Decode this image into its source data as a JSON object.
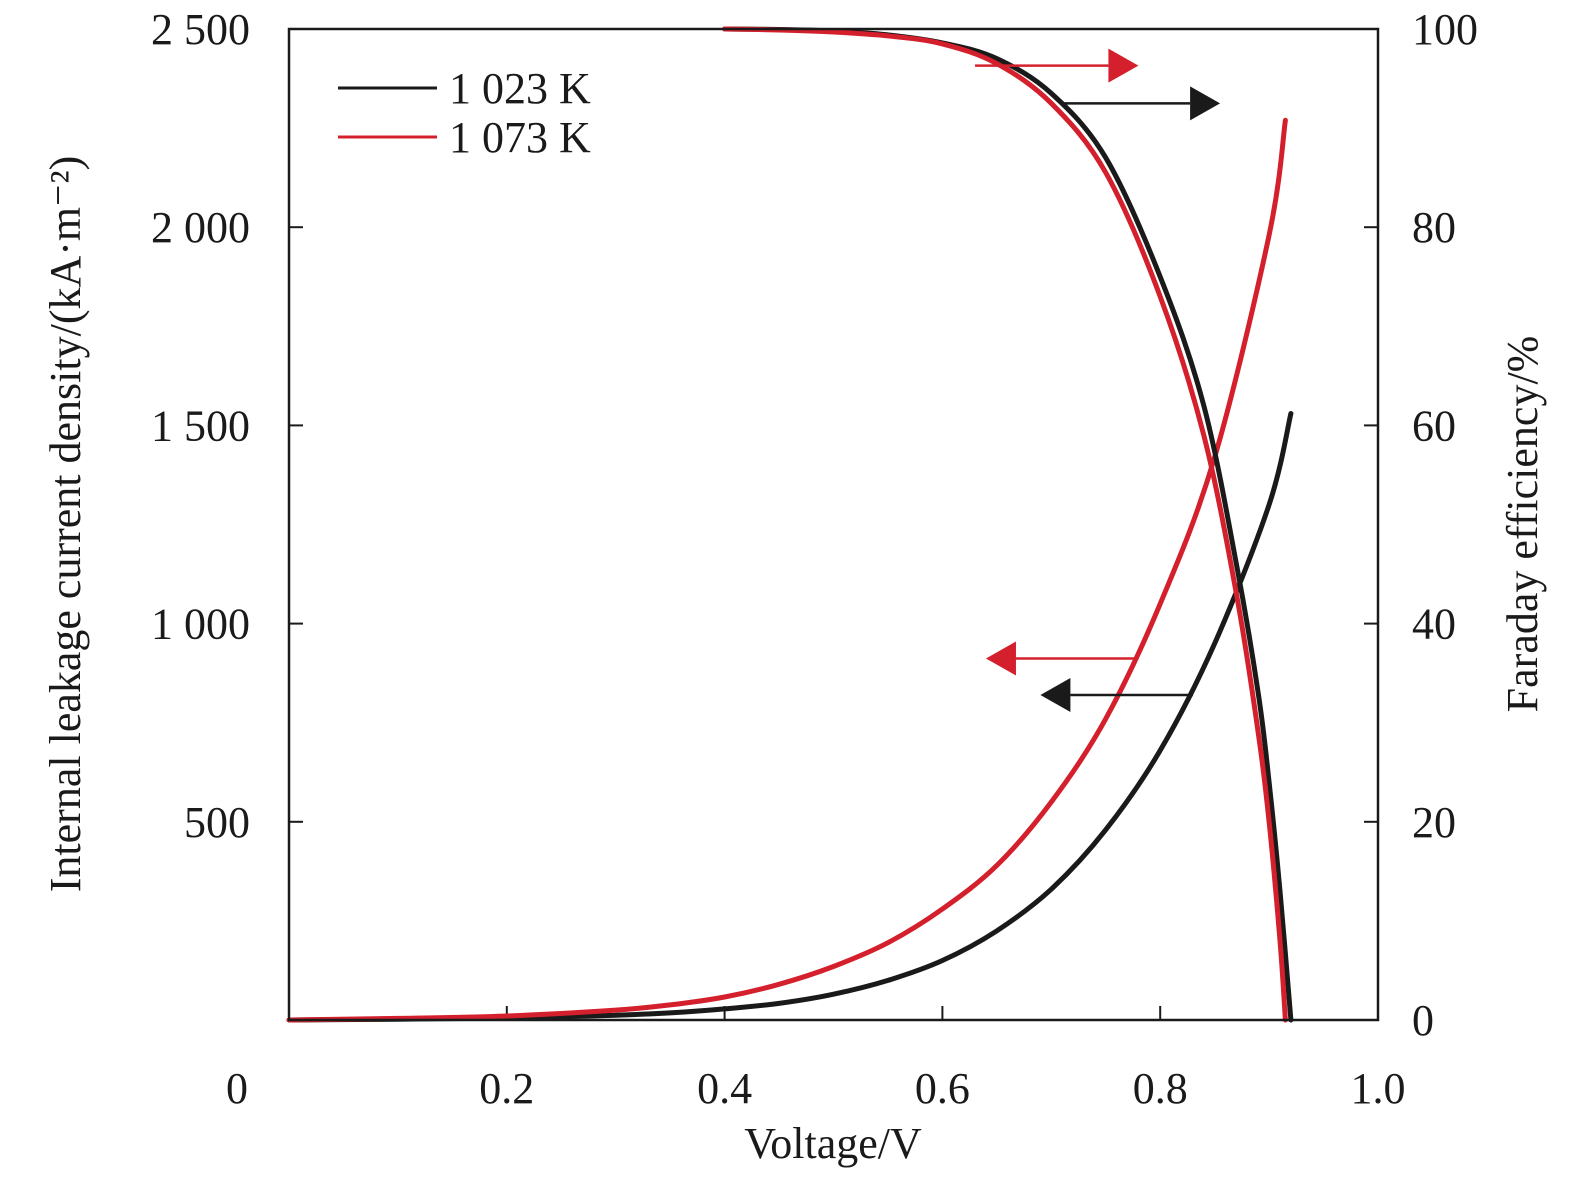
{
  "chart_data": {
    "type": "line",
    "xlabel": "Voltage/V",
    "ylabel_left": "Internal leakage current density/(kA·m⁻²)",
    "ylabel_right": "Faraday efficiency/%",
    "xlim": [
      0,
      1.0
    ],
    "ylim_left": [
      0,
      2500
    ],
    "ylim_right": [
      0,
      100
    ],
    "x_ticks": [
      {
        "value": 0,
        "label": "0"
      },
      {
        "value": 0.2,
        "label": "0.2"
      },
      {
        "value": 0.4,
        "label": "0.4"
      },
      {
        "value": 0.6,
        "label": "0.6"
      },
      {
        "value": 0.8,
        "label": "0.8"
      },
      {
        "value": 1.0,
        "label": "1.0"
      }
    ],
    "y_left_ticks": [
      {
        "value": 500,
        "label": "500"
      },
      {
        "value": 1000,
        "label": "1 000"
      },
      {
        "value": 1500,
        "label": "1 500"
      },
      {
        "value": 2000,
        "label": "2 000"
      },
      {
        "value": 2500,
        "label": "2 500"
      }
    ],
    "y_right_ticks": [
      {
        "value": 0,
        "label": "0"
      },
      {
        "value": 20,
        "label": "20"
      },
      {
        "value": 40,
        "label": "40"
      },
      {
        "value": 60,
        "label": "60"
      },
      {
        "value": 80,
        "label": "80"
      },
      {
        "value": 100,
        "label": "100"
      }
    ],
    "legend": {
      "position": "top-left",
      "entries": [
        {
          "label": "1 023 K",
          "color": "#1a1a1a"
        },
        {
          "label": "1 073 K",
          "color": "#d4202c"
        }
      ]
    },
    "series": [
      {
        "name": "1 023 K leakage current",
        "temperature": "1 023 K",
        "axis": "left",
        "color": "#1a1a1a",
        "x": [
          0.0,
          0.1,
          0.2,
          0.3,
          0.35,
          0.4,
          0.45,
          0.5,
          0.55,
          0.6,
          0.65,
          0.7,
          0.75,
          0.8,
          0.85,
          0.9,
          0.92
        ],
        "y": [
          0,
          2,
          5,
          12,
          18,
          28,
          42,
          65,
          100,
          150,
          225,
          330,
          480,
          680,
          950,
          1300,
          1530
        ]
      },
      {
        "name": "1 073 K leakage current",
        "temperature": "1 073 K",
        "axis": "left",
        "color": "#d4202c",
        "x": [
          0.0,
          0.1,
          0.2,
          0.3,
          0.35,
          0.4,
          0.45,
          0.5,
          0.55,
          0.6,
          0.65,
          0.7,
          0.75,
          0.8,
          0.85,
          0.9,
          0.915
        ],
        "y": [
          0,
          4,
          10,
          25,
          38,
          58,
          90,
          135,
          195,
          280,
          390,
          550,
          760,
          1050,
          1420,
          1980,
          2270
        ]
      },
      {
        "name": "1 023 K Faraday efficiency",
        "temperature": "1 023 K",
        "axis": "right",
        "color": "#1a1a1a",
        "x": [
          0.4,
          0.45,
          0.5,
          0.55,
          0.6,
          0.65,
          0.7,
          0.75,
          0.8,
          0.84,
          0.87,
          0.89,
          0.9,
          0.91,
          0.92
        ],
        "y": [
          100,
          99.95,
          99.8,
          99.4,
          98.6,
          97,
          93.5,
          87,
          75,
          62,
          46,
          33,
          24,
          13,
          0
        ]
      },
      {
        "name": "1 073 K Faraday efficiency",
        "temperature": "1 073 K",
        "axis": "right",
        "color": "#d4202c",
        "x": [
          0.4,
          0.45,
          0.5,
          0.55,
          0.6,
          0.65,
          0.7,
          0.75,
          0.8,
          0.84,
          0.87,
          0.89,
          0.9,
          0.91,
          0.915
        ],
        "y": [
          100,
          99.9,
          99.7,
          99.3,
          98.5,
          96.5,
          92.5,
          85.5,
          73,
          59,
          43,
          29,
          20,
          8,
          0
        ]
      }
    ],
    "annotations": [
      {
        "type": "arrow",
        "direction": "right",
        "target_axis": "right",
        "color": "#d4202c",
        "from": [
          0.63,
          96.3
        ],
        "to": [
          0.78,
          96.3
        ]
      },
      {
        "type": "arrow",
        "direction": "right",
        "target_axis": "right",
        "color": "#1a1a1a",
        "from": [
          0.71,
          92.5
        ],
        "to": [
          0.855,
          92.5
        ]
      },
      {
        "type": "arrow",
        "direction": "left",
        "target_axis": "left",
        "color": "#d4202c",
        "from": [
          0.78,
          912
        ],
        "to": [
          0.64,
          912
        ]
      },
      {
        "type": "arrow",
        "direction": "left",
        "target_axis": "left",
        "color": "#1a1a1a",
        "from": [
          0.83,
          820
        ],
        "to": [
          0.69,
          820
        ]
      }
    ]
  }
}
